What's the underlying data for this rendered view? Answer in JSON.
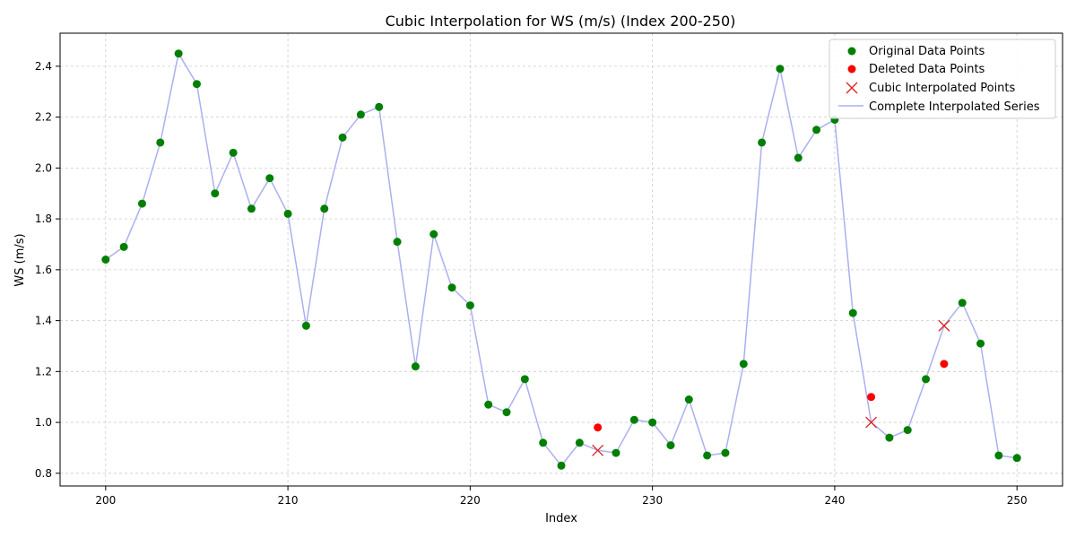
{
  "chart_data": {
    "type": "line",
    "title": "Cubic Interpolation for WS (m/s) (Index 200-250)",
    "xlabel": "Index",
    "ylabel": "WS (m/s)",
    "xlim": [
      197.5,
      252.5
    ],
    "ylim": [
      0.75,
      2.53
    ],
    "xticks": [
      200,
      210,
      220,
      230,
      240,
      250
    ],
    "yticks": [
      0.8,
      1.0,
      1.2,
      1.4,
      1.6,
      1.8,
      2.0,
      2.2,
      2.4
    ],
    "grid": true,
    "legend_position": "top-right",
    "legend": [
      "Original Data Points",
      "Deleted Data Points",
      "Cubic Interpolated Points",
      "Complete Interpolated Series"
    ],
    "colors": {
      "original": "#007f00",
      "deleted": "#ff0000",
      "interpolated": "#dd2222",
      "series": "#aab0f0"
    },
    "complete_series": {
      "x": [
        200,
        201,
        202,
        203,
        204,
        205,
        206,
        207,
        208,
        209,
        210,
        211,
        212,
        213,
        214,
        215,
        216,
        217,
        218,
        219,
        220,
        221,
        222,
        223,
        224,
        225,
        226,
        227,
        228,
        229,
        230,
        231,
        232,
        233,
        234,
        235,
        236,
        237,
        238,
        239,
        240,
        241,
        242,
        243,
        244,
        245,
        246,
        247,
        248,
        249,
        250
      ],
      "y": [
        1.64,
        1.69,
        1.86,
        2.1,
        2.45,
        2.33,
        1.9,
        2.06,
        1.84,
        1.96,
        1.82,
        1.38,
        1.84,
        2.12,
        2.21,
        2.24,
        1.71,
        1.22,
        1.74,
        1.53,
        1.46,
        1.07,
        1.04,
        1.17,
        0.92,
        0.83,
        0.92,
        0.89,
        0.88,
        1.01,
        1.0,
        0.91,
        1.09,
        0.87,
        0.88,
        1.23,
        2.1,
        2.39,
        2.04,
        2.15,
        2.19,
        1.43,
        1.0,
        0.94,
        0.97,
        1.17,
        1.38,
        1.47,
        1.31,
        0.87,
        0.86
      ]
    },
    "original_points": {
      "x": [
        200,
        201,
        202,
        203,
        204,
        205,
        206,
        207,
        208,
        209,
        210,
        211,
        212,
        213,
        214,
        215,
        216,
        217,
        218,
        219,
        220,
        221,
        222,
        223,
        224,
        225,
        226,
        228,
        229,
        230,
        231,
        232,
        233,
        234,
        235,
        236,
        237,
        238,
        239,
        240,
        241,
        243,
        244,
        245,
        247,
        248,
        249,
        250
      ],
      "y": [
        1.64,
        1.69,
        1.86,
        2.1,
        2.45,
        2.33,
        1.9,
        2.06,
        1.84,
        1.96,
        1.82,
        1.38,
        1.84,
        2.12,
        2.21,
        2.24,
        1.71,
        1.22,
        1.74,
        1.53,
        1.46,
        1.07,
        1.04,
        1.17,
        0.92,
        0.83,
        0.92,
        0.88,
        1.01,
        1.0,
        0.91,
        1.09,
        0.87,
        0.88,
        1.23,
        2.1,
        2.39,
        2.04,
        2.15,
        2.19,
        1.43,
        0.94,
        0.97,
        1.17,
        1.47,
        1.31,
        0.87,
        0.86
      ]
    },
    "deleted_points": {
      "x": [
        227,
        242,
        246
      ],
      "y": [
        0.98,
        1.1,
        1.23
      ]
    },
    "interpolated_points": {
      "x": [
        227,
        242,
        246
      ],
      "y": [
        0.89,
        1.0,
        1.38
      ]
    }
  }
}
